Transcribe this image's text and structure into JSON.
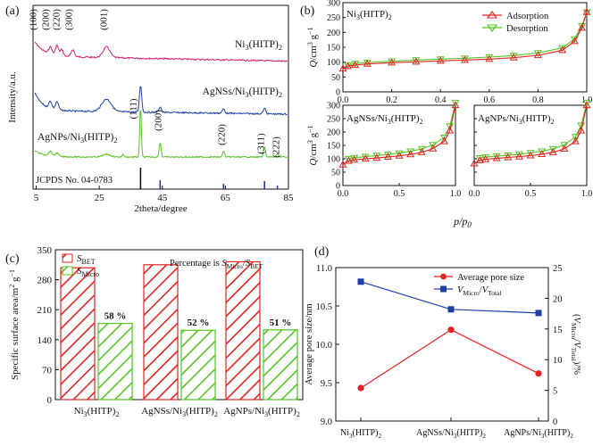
{
  "figure": "multi-panel",
  "colors": {
    "pink": "#d3216f",
    "blue": "#1d3fa8",
    "green": "#55c424",
    "red": "#e32222",
    "ref": "#1d3fa8",
    "black": "#111111"
  },
  "chart_data": [
    {
      "panel": "(a)",
      "type": "line",
      "xlabel": "2theta/degree",
      "ylabel": "Intensity/a.u.",
      "xlim": [
        4,
        85
      ],
      "xticks": [
        5,
        25,
        45,
        65,
        85
      ],
      "series_labels": [
        "Ni3(HITP)2",
        "AgNSs/Ni3(HITP)2",
        "AgNPs/Ni3(HITP)2"
      ],
      "ni_peaks": [
        "(100)",
        "(200)",
        "(220)",
        "(300)",
        "(001)"
      ],
      "ag_peaks": [
        "(111)",
        "(200)",
        "(220)",
        "(311)",
        "(222)"
      ],
      "reference": "JCPDS No. 04-0783",
      "reference_lines": [
        38.1,
        44.3,
        64.4,
        77.4,
        81.5
      ]
    },
    {
      "panel": "(b)",
      "type": "line",
      "xlabel": "p/p0",
      "ylabel": "Q/cm3 g-1",
      "legend": [
        "Adsorption",
        "Desorption"
      ],
      "subplots": [
        {
          "title": "Ni3(HITP)2",
          "ylim": [
            0,
            300
          ],
          "yticks": [
            "0",
            "50",
            "100",
            "150",
            "200",
            "250",
            "300"
          ],
          "xticks": [
            "0.0",
            "0.2",
            "0.4",
            "0.6",
            "0.8",
            "1.0"
          ],
          "adsorption": [
            [
              0,
              78
            ],
            [
              0.02,
              86
            ],
            [
              0.05,
              90
            ],
            [
              0.1,
              94
            ],
            [
              0.2,
              98
            ],
            [
              0.3,
              101
            ],
            [
              0.4,
              104
            ],
            [
              0.5,
              107
            ],
            [
              0.6,
              110
            ],
            [
              0.7,
              115
            ],
            [
              0.8,
              123
            ],
            [
              0.9,
              140
            ],
            [
              0.95,
              170
            ],
            [
              0.98,
              215
            ],
            [
              1.0,
              268
            ]
          ],
          "desorption": [
            [
              0.02,
              90
            ],
            [
              0.05,
              95
            ],
            [
              0.1,
              99
            ],
            [
              0.2,
              103
            ],
            [
              0.3,
              107
            ],
            [
              0.4,
              110
            ],
            [
              0.5,
              113
            ],
            [
              0.6,
              117
            ],
            [
              0.7,
              122
            ],
            [
              0.8,
              131
            ],
            [
              0.9,
              148
            ],
            [
              0.95,
              178
            ],
            [
              0.98,
              222
            ],
            [
              1.0,
              268
            ]
          ]
        },
        {
          "title": "AgNSs/Ni3(HITP)2",
          "ylim": [
            0,
            300
          ],
          "yticks": [
            "0",
            "50",
            "100",
            "150",
            "200",
            "250",
            "300"
          ],
          "xticks": [
            "0.0",
            "0.5",
            "1.0"
          ],
          "adsorption": [
            [
              0,
              78
            ],
            [
              0.05,
              92
            ],
            [
              0.1,
              96
            ],
            [
              0.2,
              100
            ],
            [
              0.3,
              103
            ],
            [
              0.4,
              107
            ],
            [
              0.5,
              111
            ],
            [
              0.6,
              116
            ],
            [
              0.7,
              124
            ],
            [
              0.8,
              138
            ],
            [
              0.9,
              165
            ],
            [
              0.95,
              205
            ],
            [
              1.0,
              300
            ]
          ],
          "desorption": [
            [
              0.05,
              100
            ],
            [
              0.1,
              104
            ],
            [
              0.2,
              108
            ],
            [
              0.3,
              112
            ],
            [
              0.4,
              116
            ],
            [
              0.5,
              121
            ],
            [
              0.6,
              128
            ],
            [
              0.7,
              137
            ],
            [
              0.8,
              152
            ],
            [
              0.9,
              180
            ],
            [
              0.95,
              222
            ],
            [
              1.0,
              310
            ]
          ]
        },
        {
          "title": "AgNPs/Ni3(HITP)2",
          "ylim": [
            0,
            300
          ],
          "yticks": [
            "0",
            "50",
            "100",
            "150",
            "200",
            "250",
            "300"
          ],
          "xticks": [
            "0.0",
            "0.5",
            "1.0"
          ],
          "adsorption": [
            [
              0,
              82
            ],
            [
              0.05,
              94
            ],
            [
              0.1,
              98
            ],
            [
              0.2,
              102
            ],
            [
              0.3,
              105
            ],
            [
              0.4,
              108
            ],
            [
              0.5,
              112
            ],
            [
              0.6,
              117
            ],
            [
              0.7,
              124
            ],
            [
              0.8,
              137
            ],
            [
              0.9,
              165
            ],
            [
              0.95,
              205
            ],
            [
              1.0,
              300
            ]
          ],
          "desorption": [
            [
              0.05,
              103
            ],
            [
              0.1,
              106
            ],
            [
              0.2,
              110
            ],
            [
              0.3,
              113
            ],
            [
              0.4,
              117
            ],
            [
              0.5,
              122
            ],
            [
              0.6,
              128
            ],
            [
              0.7,
              137
            ],
            [
              0.8,
              152
            ],
            [
              0.9,
              182
            ],
            [
              0.95,
              225
            ],
            [
              1.0,
              310
            ]
          ]
        }
      ]
    },
    {
      "panel": "(c)",
      "type": "bar",
      "categories": [
        "Ni3(HITP)2",
        "AgNSs/Ni3(HITP)2",
        "AgNPs/Ni3(HITP)2"
      ],
      "series": [
        {
          "name": "S_BET",
          "values": [
            308,
            315,
            322
          ]
        },
        {
          "name": "S_Micro",
          "values": [
            178,
            162,
            163
          ]
        }
      ],
      "data_labels": [
        "58 %",
        "52 %",
        "51 %"
      ],
      "note": "Percentage is SMicro/SBET",
      "ylabel": "Specific surface area/m2 g-1",
      "ylim": [
        0,
        350
      ],
      "yticks": [
        "0",
        "70",
        "140",
        "210",
        "280",
        "350"
      ]
    },
    {
      "panel": "(d)",
      "type": "line",
      "categories": [
        "Ni3(HITP)2",
        "AgNSs/Ni3(HITP)2",
        "AgNPs/Ni3(HITP)2"
      ],
      "series": [
        {
          "name": "Average pore size",
          "axis": "left",
          "values": [
            9.43,
            10.19,
            9.62
          ]
        },
        {
          "name": "VMicro/VTotal",
          "axis": "right",
          "values": [
            22.7,
            18.2,
            17.6
          ]
        }
      ],
      "ylabel": "Average pore size/nm",
      "y2label": "(VMicro/VTotal)/%",
      "ylim": [
        9.0,
        11.0
      ],
      "yticks": [
        "9.0",
        "9.5",
        "10.0",
        "10.5",
        "11.0"
      ],
      "y2lim": [
        0,
        25
      ],
      "y2ticks": [
        "0",
        "5",
        "10",
        "15",
        "20",
        "25"
      ]
    }
  ]
}
